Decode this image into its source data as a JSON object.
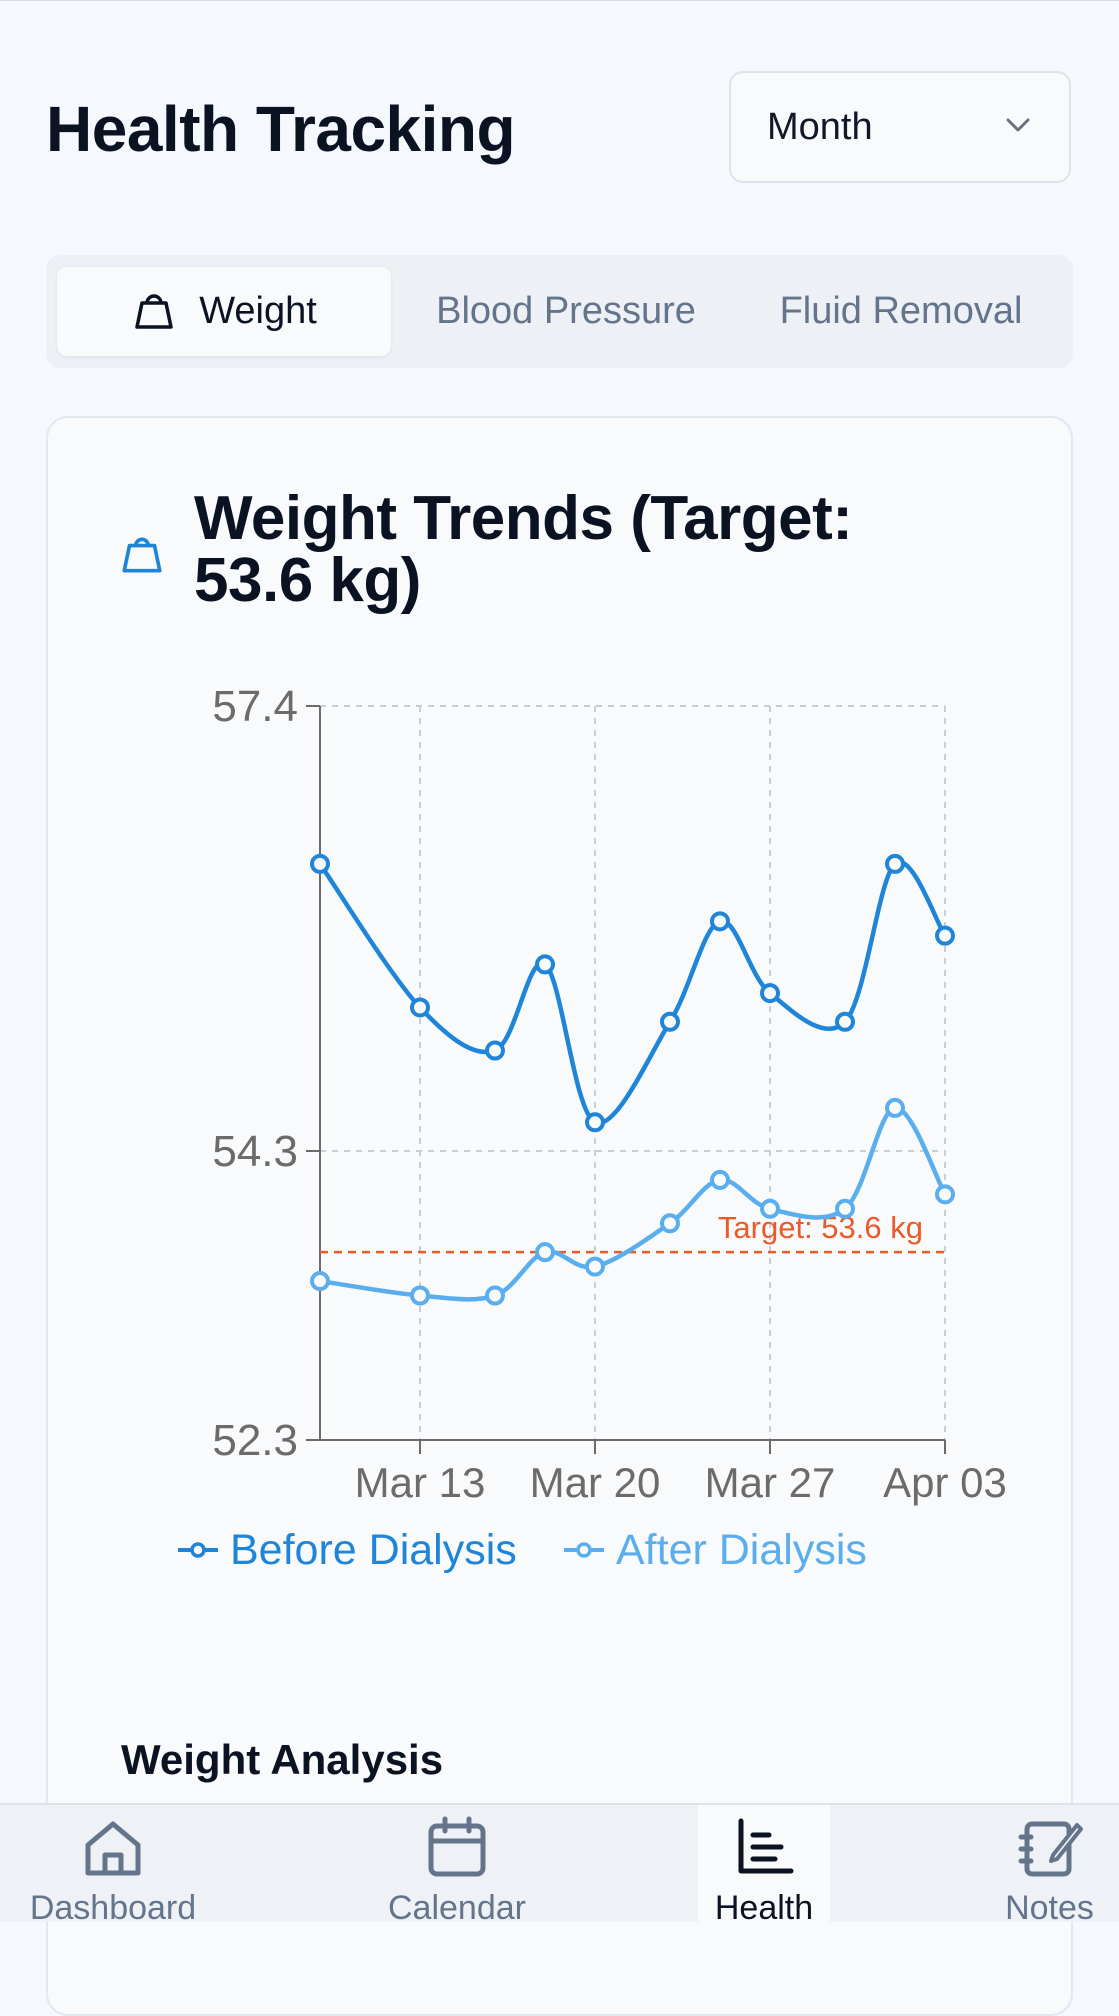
{
  "header": {
    "title": "Health Tracking"
  },
  "range_select": {
    "value": "Month"
  },
  "tabs": [
    {
      "label": "Weight",
      "active": true
    },
    {
      "label": "Blood Pressure",
      "active": false
    },
    {
      "label": "Fluid Removal",
      "active": false
    }
  ],
  "card": {
    "title": "Weight Trends (Target: 53.6 kg)"
  },
  "section": {
    "title": "Weight Analysis"
  },
  "nav": [
    {
      "label": "Dashboard",
      "icon": "home-icon"
    },
    {
      "label": "Calendar",
      "icon": "calendar-icon"
    },
    {
      "label": "Health",
      "icon": "bar-chart-icon",
      "active": true
    },
    {
      "label": "Notes",
      "icon": "notes-icon"
    }
  ],
  "colors": {
    "before": "#1f85d8",
    "after": "#5aaeee",
    "target": "#ea5a2a"
  },
  "chart_data": {
    "type": "line",
    "x": [
      "2024-03-09",
      "2024-03-13",
      "2024-03-16",
      "2024-03-18",
      "2024-03-20",
      "2024-03-23",
      "2024-03-25",
      "2024-03-27",
      "2024-03-30",
      "2024-04-01",
      "2024-04-03"
    ],
    "xticks": [
      "Mar 13",
      "Mar 20",
      "Mar 27",
      "Apr 03"
    ],
    "yticks": [
      "52.3",
      "54.3",
      "57.4"
    ],
    "ylim": [
      52.3,
      57.4
    ],
    "grid": true,
    "legend": "bottom",
    "series": [
      {
        "name": "Before Dialysis",
        "values": [
          56.3,
          55.3,
          55.0,
          55.6,
          54.5,
          55.2,
          55.9,
          55.4,
          55.2,
          56.3,
          55.8
        ]
      },
      {
        "name": "After Dialysis",
        "values": [
          53.4,
          53.3,
          53.3,
          53.6,
          53.5,
          53.8,
          54.1,
          53.9,
          53.9,
          54.6,
          54.0
        ]
      }
    ],
    "target": {
      "value": 53.6,
      "label": "Target: 53.6 kg"
    }
  }
}
